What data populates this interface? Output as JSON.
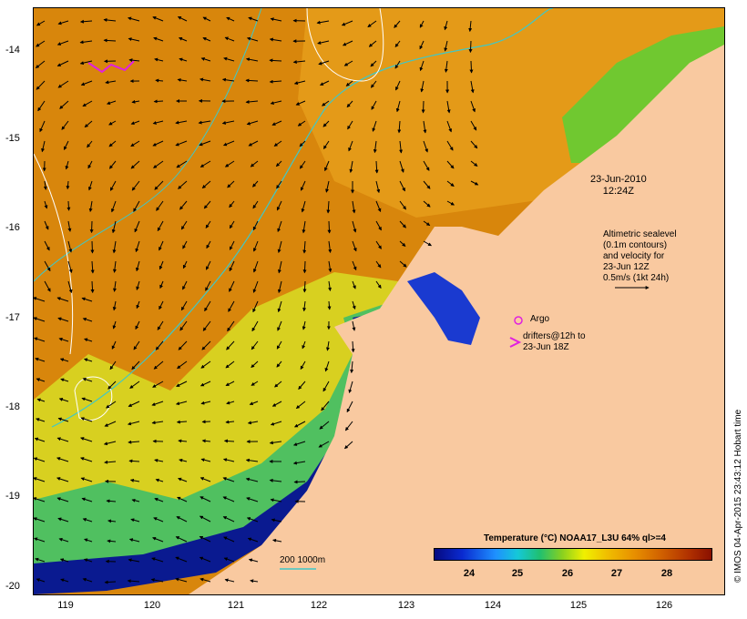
{
  "map": {
    "lon_ticks": [
      "119",
      "120",
      "121",
      "122",
      "123",
      "124",
      "125",
      "126"
    ],
    "lat_ticks": [
      "-14",
      "-15",
      "-16",
      "-17",
      "-18",
      "-19",
      "-20"
    ],
    "date_line1": "23-Jun-2010",
    "date_line2": "12:24Z",
    "sealevel_lines": [
      "Altimetric sealevel",
      "(0.1m contours)",
      "and velocity for",
      "23-Jun 12Z",
      "0.5m/s (1kt 24h)"
    ],
    "argo_label": "Argo",
    "drifter_line1": "drifters@12h to",
    "drifter_line2": "23-Jun 18Z",
    "scale_label": "200  1000m",
    "colorbar_title": "Temperature (°C) NOAA17_L3U 64% ql>=4",
    "colorbar_ticks": [
      "24",
      "25",
      "26",
      "27",
      "28"
    ],
    "credit": "© IMOS 04-Apr-2015 23:43:12 Hobart time",
    "colors": {
      "land": "#f9c9a0",
      "warm": "#d8860c",
      "cool": "#0a1a90",
      "contour": "#3ec8c8",
      "argo": "#e020e0"
    }
  }
}
